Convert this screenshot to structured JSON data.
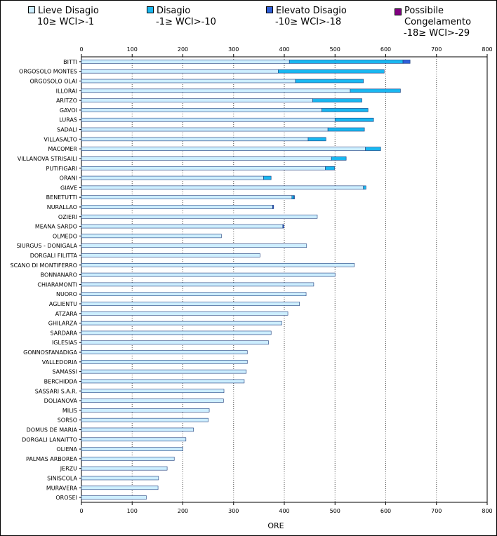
{
  "chart_data": {
    "type": "bar",
    "stacked": true,
    "orientation": "horizontal",
    "xlabel": "ORE",
    "xlim": [
      0,
      800
    ],
    "xticks": [
      0,
      100,
      200,
      300,
      400,
      500,
      600,
      700,
      800
    ],
    "grid": "vertical dotted",
    "legend_position": "top",
    "legend": [
      {
        "name": "Lieve Disagio",
        "range": "10≥ WCI>-1",
        "color": "#cdeeff"
      },
      {
        "name": "Disagio",
        "range": "-1≥ WCI>-10",
        "color": "#19b7f0"
      },
      {
        "name": "Elevato Disagio",
        "range": "-10≥ WCI>-18",
        "color": "#2f5fd8"
      },
      {
        "name": "Possibile Congelamento",
        "range": "-18≥ WCI>-29",
        "color": "#800080"
      }
    ],
    "categories": [
      "BITTI",
      "ORGOSOLO MONTES",
      "ORGOSOLO OLAI",
      "ILLORAI",
      "ARITZO",
      "GAVOI",
      "LURAS",
      "SADALI",
      "VILLASALTO",
      "MACOMER",
      "VILLANOVA STRISAILI",
      "PUTIFIGARI",
      "ORANI",
      "GIAVE",
      "BENETUTTI",
      "NURALLAO",
      "OZIERI",
      "MEANA SARDO",
      "OLMEDO",
      "SIURGUS - DONIGALA",
      "DORGALI FILITTA",
      "SCANO DI MONTIFERRO",
      "BONNANARO",
      "CHIARAMONTI",
      "NUORO",
      "AGLIENTU",
      "ATZARA",
      "GHILARZA",
      "SARDARA",
      "IGLESIAS",
      "GONNOSFANADIGA",
      "VALLEDORIA",
      "SAMASSI",
      "BERCHIDDA",
      "SASSARI S.A.R.",
      "DOLIANOVA",
      "MILIS",
      "SORSO",
      "DOMUS DE MARIA",
      "DORGALI LANAITTO",
      "OLIENA",
      "PALMAS ARBOREA",
      "JERZU",
      "SINISCOLA",
      "MURAVERA",
      "OROSEI"
    ],
    "series": [
      {
        "name": "Lieve Disagio",
        "values": [
          410,
          388,
          422,
          530,
          456,
          474,
          500,
          486,
          447,
          560,
          493,
          481,
          359,
          556,
          415,
          377,
          465,
          397,
          276,
          444,
          352,
          538,
          500,
          458,
          443,
          430,
          407,
          395,
          374,
          369,
          327,
          327,
          325,
          321,
          281,
          280,
          252,
          250,
          221,
          206,
          200,
          183,
          169,
          152,
          151,
          128
        ]
      },
      {
        "name": "Disagio",
        "values": [
          224,
          209,
          134,
          99,
          97,
          91,
          76,
          72,
          35,
          30,
          29,
          18,
          15,
          5,
          4,
          0,
          0,
          0,
          0,
          0,
          0,
          0,
          0,
          0,
          0,
          0,
          0,
          0,
          0,
          0,
          0,
          0,
          0,
          0,
          0,
          0,
          0,
          0,
          0,
          0,
          0,
          0,
          0,
          0,
          0,
          0
        ]
      },
      {
        "name": "Elevato Disagio",
        "values": [
          14,
          0,
          0,
          0,
          0,
          0,
          0,
          0,
          0,
          0,
          0,
          0,
          0,
          0,
          1,
          2,
          0,
          2,
          0,
          0,
          0,
          0,
          0,
          0,
          0,
          0,
          0,
          0,
          0,
          0,
          0,
          0,
          0,
          0,
          0,
          0,
          0,
          0,
          0,
          0,
          0,
          0,
          0,
          0,
          0,
          0
        ]
      },
      {
        "name": "Possibile Congelamento",
        "values": [
          0,
          0,
          0,
          0,
          0,
          0,
          0,
          0,
          0,
          0,
          0,
          0,
          0,
          0,
          0,
          0,
          0,
          0,
          0,
          0,
          0,
          0,
          0,
          0,
          0,
          0,
          0,
          0,
          0,
          0,
          0,
          0,
          0,
          0,
          0,
          0,
          0,
          0,
          0,
          0,
          0,
          0,
          0,
          0,
          0,
          0
        ]
      }
    ]
  }
}
